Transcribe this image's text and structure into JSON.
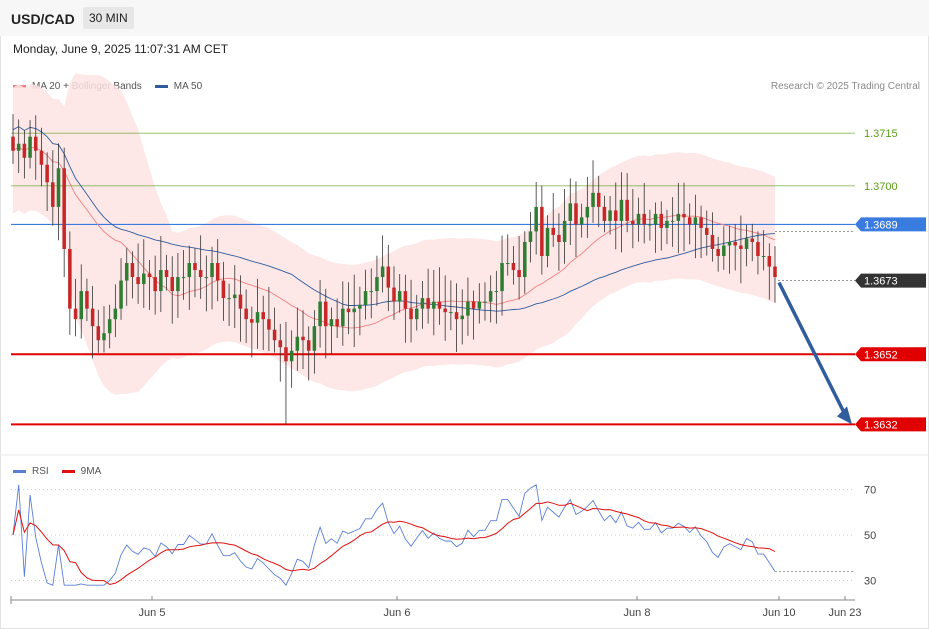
{
  "header": {
    "symbol": "USD/CAD",
    "timeframe": "30 MIN"
  },
  "datetime": "Monday, June 9, 2025 11:07:31 AM CET",
  "credit": "Research © 2025 Trading Central",
  "legend_top": [
    {
      "label": "MA 20 + Bollinger Bands",
      "color": "#f08080"
    },
    {
      "label": "MA 50",
      "color": "#2f5d9e"
    }
  ],
  "legend_bottom": [
    {
      "label": "RSI",
      "color": "#5b7fd6"
    },
    {
      "label": "9MA",
      "color": "#e01010"
    }
  ],
  "colors": {
    "up": "#2e7d32",
    "down": "#c62828",
    "resistance": "#5a9e1a",
    "pivot": "#3a7be0",
    "support": "#e00000",
    "current": "#333333",
    "arrow": "#2f5d9e",
    "band_fill": "#fde3e3"
  },
  "chart_data": [
    {
      "type": "candlestick",
      "title": "USD/CAD",
      "timeframe": "30 MIN",
      "ylim": [
        1.3625,
        1.3735
      ],
      "x_tick_labels": [
        "Jun 5",
        "Jun 6",
        "Jun 8",
        "Jun 10",
        "Jun 23"
      ],
      "close": [
        1.371,
        1.3712,
        1.3708,
        1.3714,
        1.371,
        1.3706,
        1.3701,
        1.3694,
        1.3705,
        1.3682,
        1.3665,
        1.3662,
        1.367,
        1.3665,
        1.366,
        1.3656,
        1.3658,
        1.3662,
        1.3665,
        1.3673,
        1.3678,
        1.3674,
        1.3672,
        1.3675,
        1.3674,
        1.367,
        1.3676,
        1.3674,
        1.367,
        1.3674,
        1.3674,
        1.3678,
        1.3676,
        1.3674,
        1.3674,
        1.3678,
        1.3673,
        1.3668,
        1.3668,
        1.3669,
        1.3665,
        1.3662,
        1.3661,
        1.3664,
        1.3662,
        1.3659,
        1.3656,
        1.3654,
        1.365,
        1.3653,
        1.3657,
        1.3656,
        1.3653,
        1.366,
        1.3667,
        1.366,
        1.3662,
        1.366,
        1.3665,
        1.3664,
        1.3665,
        1.3666,
        1.367,
        1.367,
        1.3674,
        1.3677,
        1.3671,
        1.3667,
        1.367,
        1.3665,
        1.3662,
        1.3665,
        1.3668,
        1.3665,
        1.3667,
        1.3665,
        1.3664,
        1.3664,
        1.3662,
        1.3663,
        1.3667,
        1.3665,
        1.3667,
        1.3667,
        1.367,
        1.367,
        1.3678,
        1.3678,
        1.3676,
        1.3674,
        1.3684,
        1.3687,
        1.3694,
        1.368,
        1.3688,
        1.3686,
        1.3684,
        1.369,
        1.3695,
        1.3689,
        1.3691,
        1.3694,
        1.3698,
        1.3694,
        1.369,
        1.3693,
        1.369,
        1.3696,
        1.369,
        1.3689,
        1.3692,
        1.3689,
        1.3689,
        1.3692,
        1.3688,
        1.369,
        1.369,
        1.3692,
        1.3691,
        1.3689,
        1.3691,
        1.3688,
        1.3686,
        1.3682,
        1.368,
        1.3683,
        1.3684,
        1.3683,
        1.3682,
        1.3685,
        1.3684,
        1.368,
        1.368,
        1.3677,
        1.3674
      ],
      "reference_levels": [
        {
          "label": "1.3715",
          "value": 1.3715,
          "kind": "resistance"
        },
        {
          "label": "1.3700",
          "value": 1.37,
          "kind": "resistance"
        },
        {
          "label": "1.3689",
          "value": 1.3689,
          "kind": "pivot"
        },
        {
          "label": "1.3673",
          "value": 1.3673,
          "kind": "current"
        },
        {
          "label": "1.3652",
          "value": 1.3652,
          "kind": "support"
        },
        {
          "label": "1.3632",
          "value": 1.3632,
          "kind": "support"
        }
      ],
      "projection": {
        "from": 1.3673,
        "to": 1.3632,
        "direction": "down"
      },
      "indicators": [
        "MA 20 + Bollinger Bands",
        "MA 50"
      ]
    },
    {
      "type": "line",
      "title": "RSI",
      "ylim": [
        25,
        75
      ],
      "y_tick_labels": [
        "70",
        "50",
        "30"
      ],
      "y_ticks": [
        70,
        50,
        30
      ],
      "series": [
        {
          "name": "RSI",
          "color": "#5b7fd6"
        },
        {
          "name": "9MA",
          "color": "#e01010"
        }
      ],
      "last_value": 34
    }
  ]
}
